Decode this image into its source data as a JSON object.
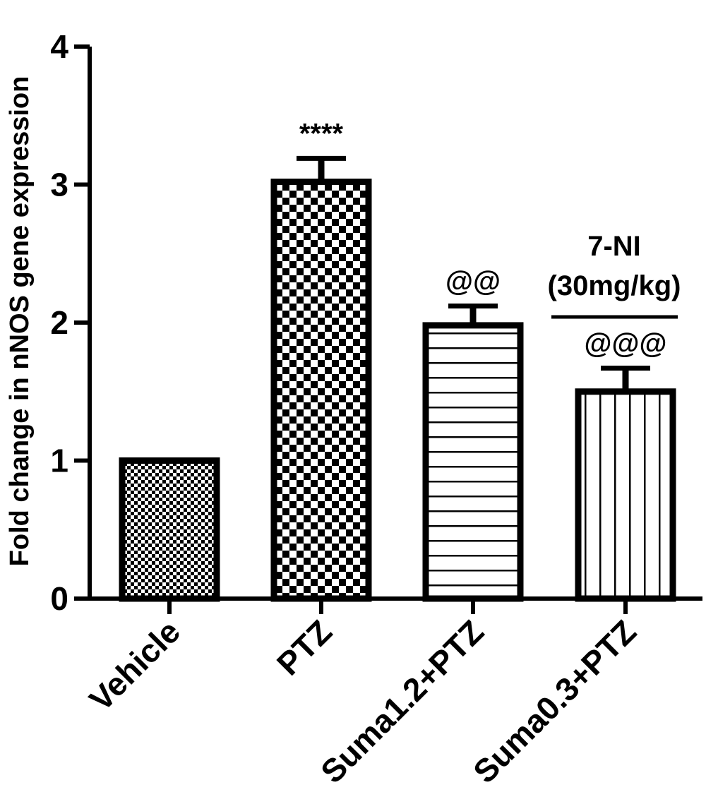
{
  "chart_data": {
    "type": "bar",
    "title": "",
    "ylabel": "Fold change in nNOS gene expression",
    "xlabel": "",
    "ylim": [
      0,
      4
    ],
    "yticks": [
      0,
      1,
      2,
      3,
      4
    ],
    "categories": [
      "Vehicle",
      "PTZ",
      "Suma1.2+PTZ",
      "Suma0.3+PTZ"
    ],
    "values": [
      1.0,
      3.02,
      1.98,
      1.5
    ],
    "errors": [
      0.0,
      0.17,
      0.14,
      0.17
    ],
    "patterns": [
      "fine-checker",
      "checker",
      "horizontal-lines",
      "vertical-lines"
    ],
    "significance": [
      "",
      "****",
      "@@",
      "@@@"
    ],
    "group_annotation": {
      "line1": "7-NI",
      "line2": "(30mg/kg)"
    },
    "grid": false,
    "legend": "none"
  }
}
